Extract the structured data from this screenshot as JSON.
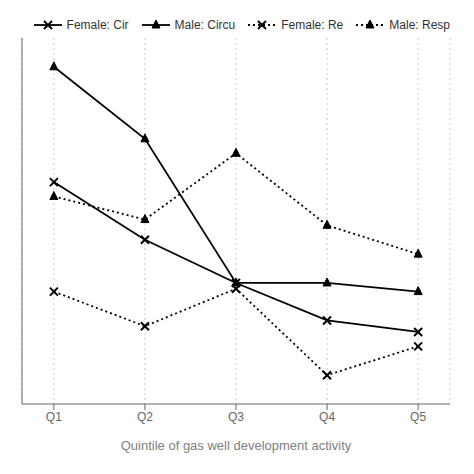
{
  "chart_data": {
    "type": "line",
    "xlabel": "Quintile of gas well development activity",
    "x": [
      1,
      2,
      3,
      4,
      5
    ],
    "xlim": [
      0.65,
      5.35
    ],
    "xticks": [
      {
        "value": 1,
        "label": "Q1"
      },
      {
        "value": 2,
        "label": "Q2"
      },
      {
        "value": 3,
        "label": "Q3"
      },
      {
        "value": 4,
        "label": "Q4"
      },
      {
        "value": 5,
        "label": "Q5"
      }
    ],
    "ylim": [
      -0.22,
      1.05
    ],
    "grid": true,
    "legend": "upper right",
    "tick_labels": "x",
    "series": [
      {
        "name": "Female: Cir",
        "color": "#000000",
        "marker": "x",
        "line_style": "solid",
        "values": [
          0.55,
          0.35,
          0.2,
          0.07,
          0.03
        ]
      },
      {
        "name": "Male: Circu",
        "color": "#000000",
        "marker": "triangle",
        "line_style": "solid",
        "values": [
          0.95,
          0.7,
          0.2,
          0.2,
          0.17
        ]
      },
      {
        "name": "Female: Re",
        "color": "#000000",
        "marker": "x",
        "line_style": "dotted",
        "values": [
          0.17,
          0.05,
          0.18,
          -0.12,
          -0.02
        ]
      },
      {
        "name": "Male: Resp",
        "color": "#000000",
        "marker": "triangle",
        "line_style": "dotted",
        "values": [
          0.5,
          0.42,
          0.65,
          0.4,
          0.3
        ]
      }
    ]
  }
}
